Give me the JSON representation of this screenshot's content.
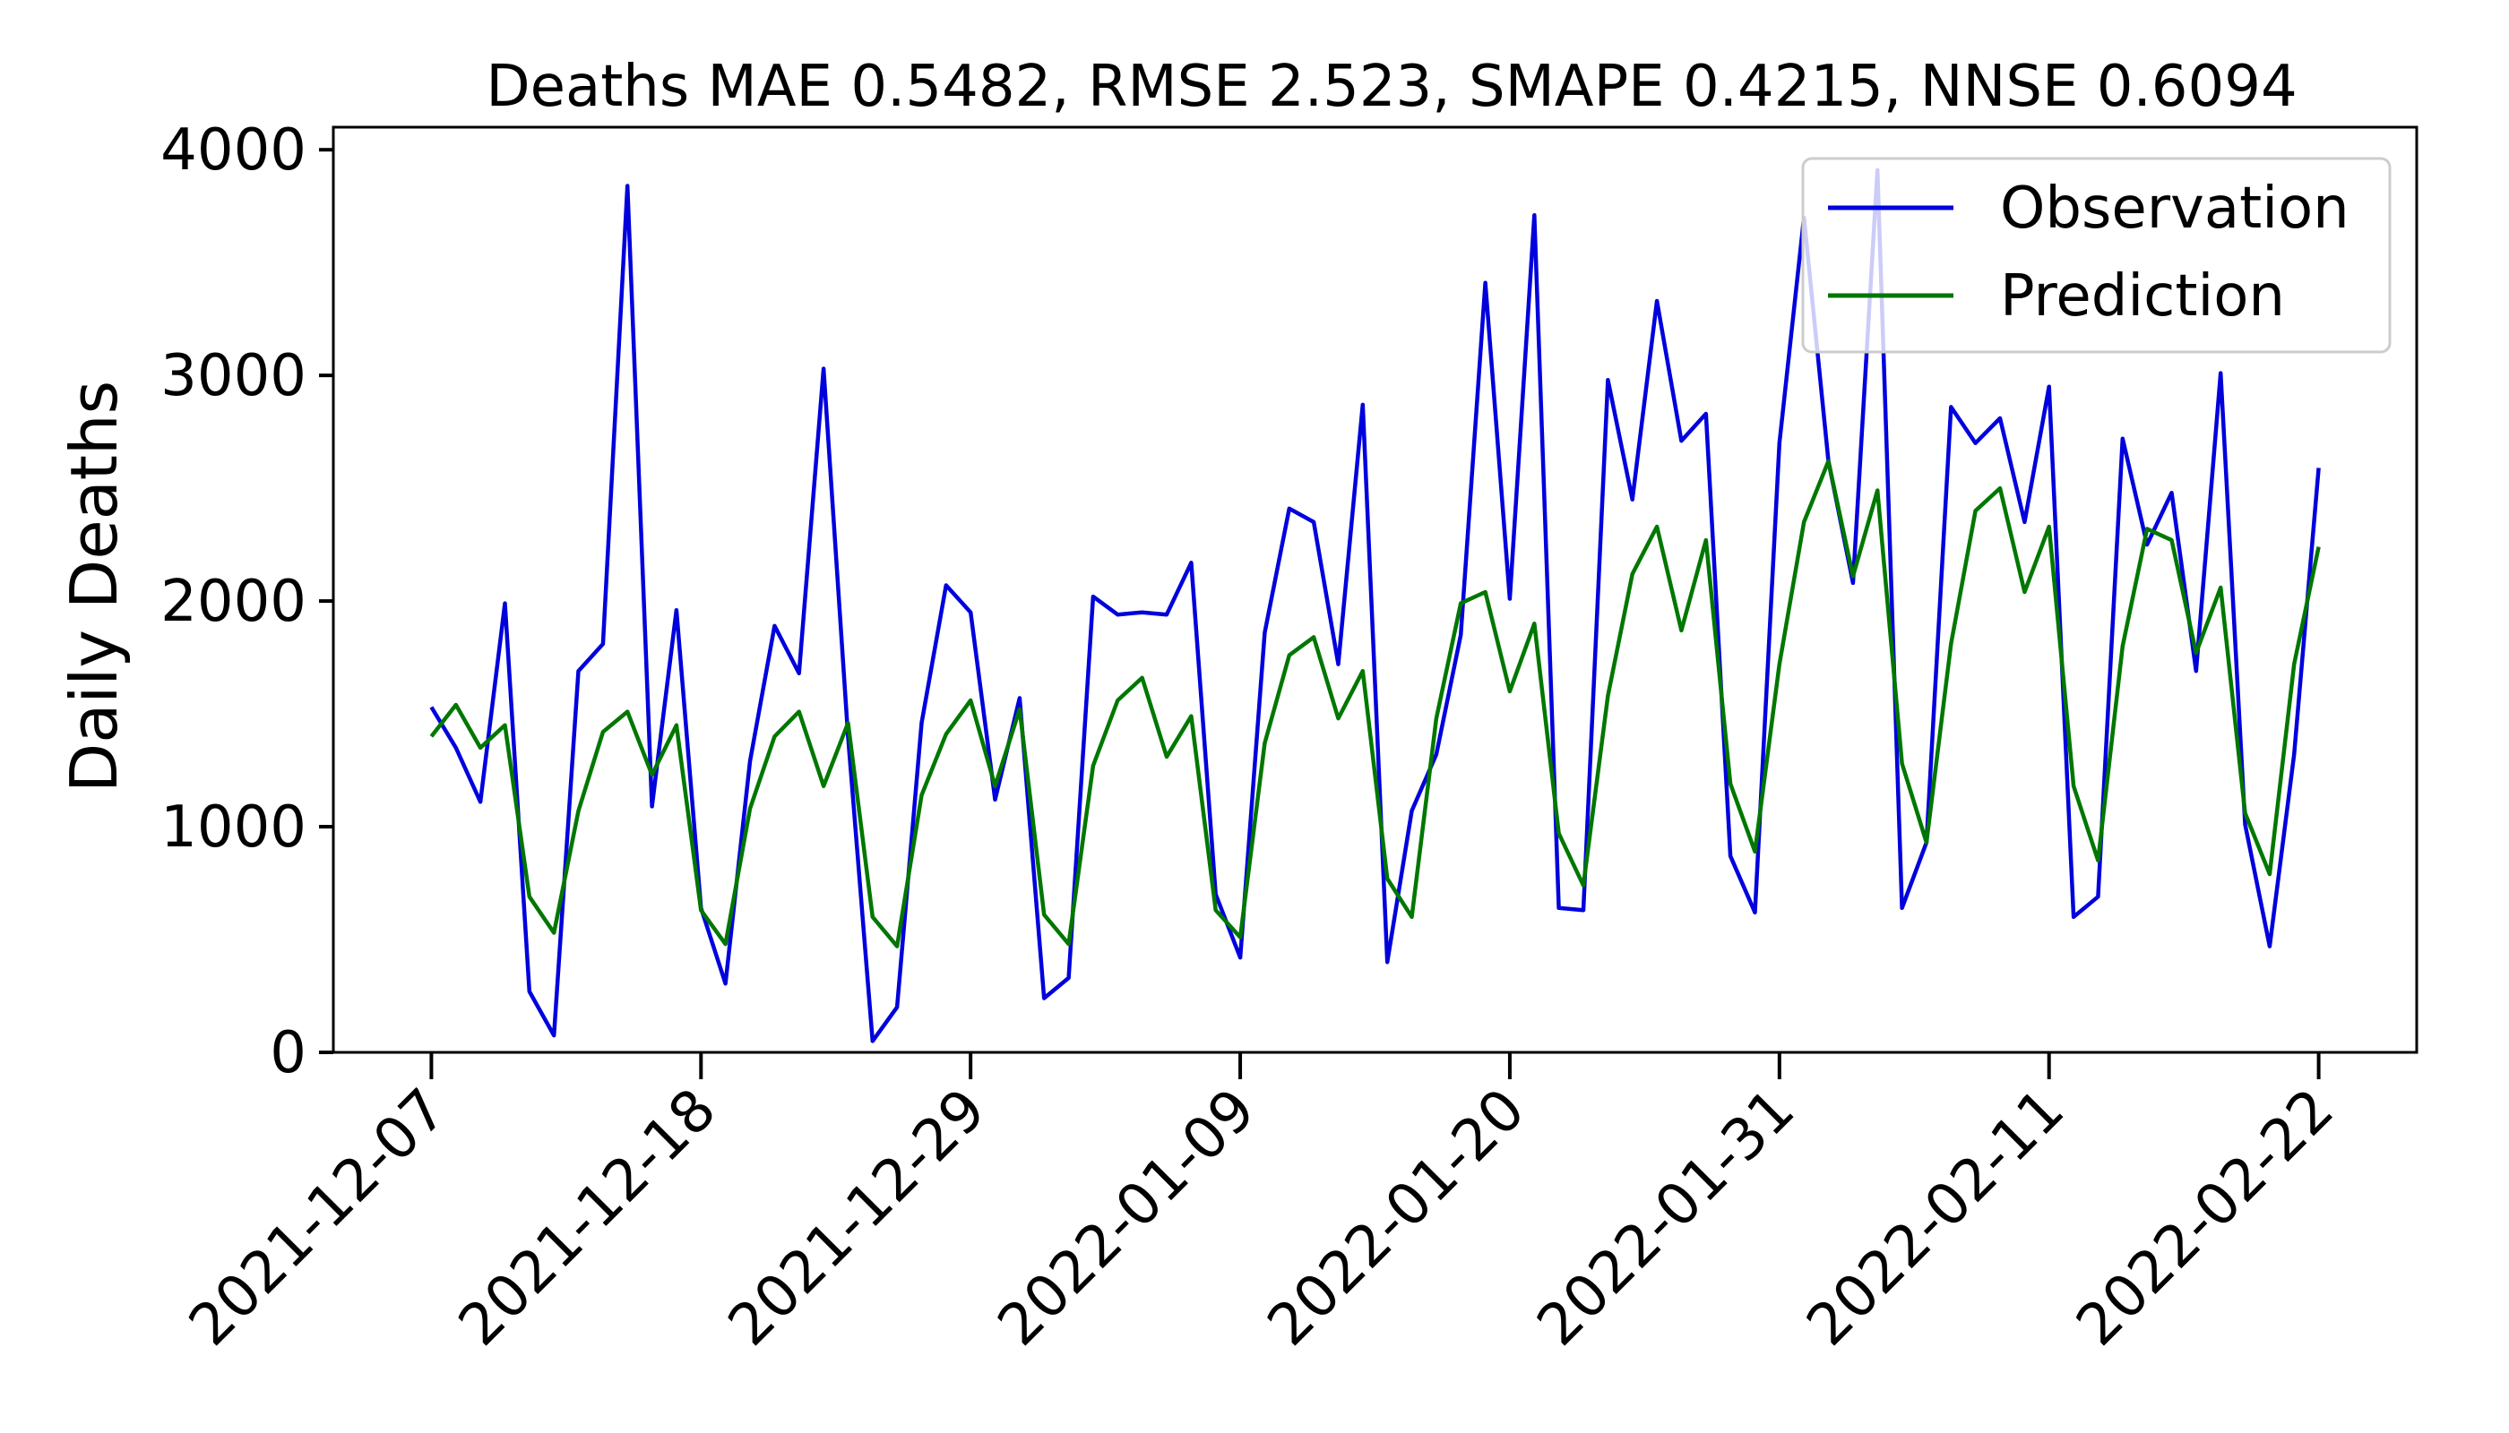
{
  "chart_data": {
    "type": "line",
    "title": "Deaths MAE 0.5482, RMSE 2.523, SMAPE 0.4215, NNSE 0.6094",
    "xlabel": "",
    "ylabel": "Daily Deaths",
    "x_start": "2021-12-07",
    "x_end": "2022-02-22",
    "xlim": [
      "2021-12-03",
      "2022-02-26"
    ],
    "ylim": [
      0,
      4100
    ],
    "xticks": [
      "2021-12-07",
      "2021-12-18",
      "2021-12-29",
      "2022-01-09",
      "2022-01-20",
      "2022-01-31",
      "2022-02-11",
      "2022-02-22"
    ],
    "yticks": [
      0,
      1000,
      2000,
      3000,
      4000
    ],
    "yticklabels": [
      "0",
      "1000",
      "2000",
      "3000",
      "4000"
    ],
    "grid": false,
    "legend": "top-right",
    "series": [
      {
        "name": "Observation",
        "color": "#0000dd",
        "values": [
          1530,
          1350,
          1110,
          1990,
          270,
          75,
          1690,
          1810,
          3840,
          1090,
          1960,
          640,
          305,
          1290,
          1890,
          1680,
          3030,
          1400,
          50,
          200,
          1460,
          2070,
          1950,
          1120,
          1570,
          240,
          330,
          2020,
          1940,
          1950,
          1940,
          2170,
          700,
          420,
          1860,
          2410,
          2350,
          1720,
          2870,
          400,
          1070,
          1320,
          1850,
          3410,
          2010,
          3710,
          640,
          630,
          2980,
          2450,
          3330,
          2710,
          2830,
          870,
          620,
          2700,
          3700,
          2620,
          2080,
          3910,
          640,
          930,
          2860,
          2700,
          2810,
          2350,
          2950,
          600,
          690,
          2720,
          2250,
          2480,
          1690,
          3010,
          1010,
          470,
          1320,
          2590
        ]
      },
      {
        "name": "Prediction",
        "color": "#007700",
        "values": [
          1400,
          1540,
          1350,
          1450,
          690,
          530,
          1070,
          1420,
          1510,
          1230,
          1450,
          630,
          480,
          1080,
          1400,
          1510,
          1180,
          1460,
          600,
          470,
          1140,
          1410,
          1560,
          1180,
          1520,
          610,
          480,
          1270,
          1560,
          1660,
          1310,
          1490,
          630,
          510,
          1370,
          1760,
          1840,
          1480,
          1690,
          770,
          600,
          1480,
          1990,
          2040,
          1600,
          1900,
          970,
          740,
          1580,
          2120,
          2330,
          1870,
          2270,
          1190,
          890,
          1720,
          2350,
          2620,
          2110,
          2490,
          1280,
          930,
          1810,
          2400,
          2500,
          2040,
          2330,
          1180,
          850,
          1800,
          2320,
          2270,
          1770,
          2060,
          1060,
          790,
          1720,
          2240
        ]
      }
    ]
  }
}
